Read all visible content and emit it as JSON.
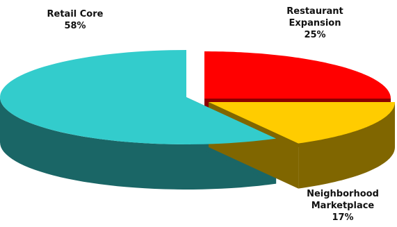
{
  "chart_data": {
    "type": "pie",
    "style": "3d-exploded",
    "legend": "none",
    "slices": [
      {
        "label_lines": [
          "Restaurant",
          "Expansion"
        ],
        "value_label": "25%",
        "value": 25,
        "color": "#ff0000",
        "side_color": "#8b0000"
      },
      {
        "label_lines": [
          "Neighborhood",
          "Marketplace"
        ],
        "value_label": "17%",
        "value": 17,
        "color": "#ffcc00",
        "side_color": "#806600"
      },
      {
        "label_lines": [
          "Retail Core"
        ],
        "value_label": "58%",
        "value": 58,
        "color": "#33cccc",
        "side_color": "#1a6666"
      }
    ]
  }
}
